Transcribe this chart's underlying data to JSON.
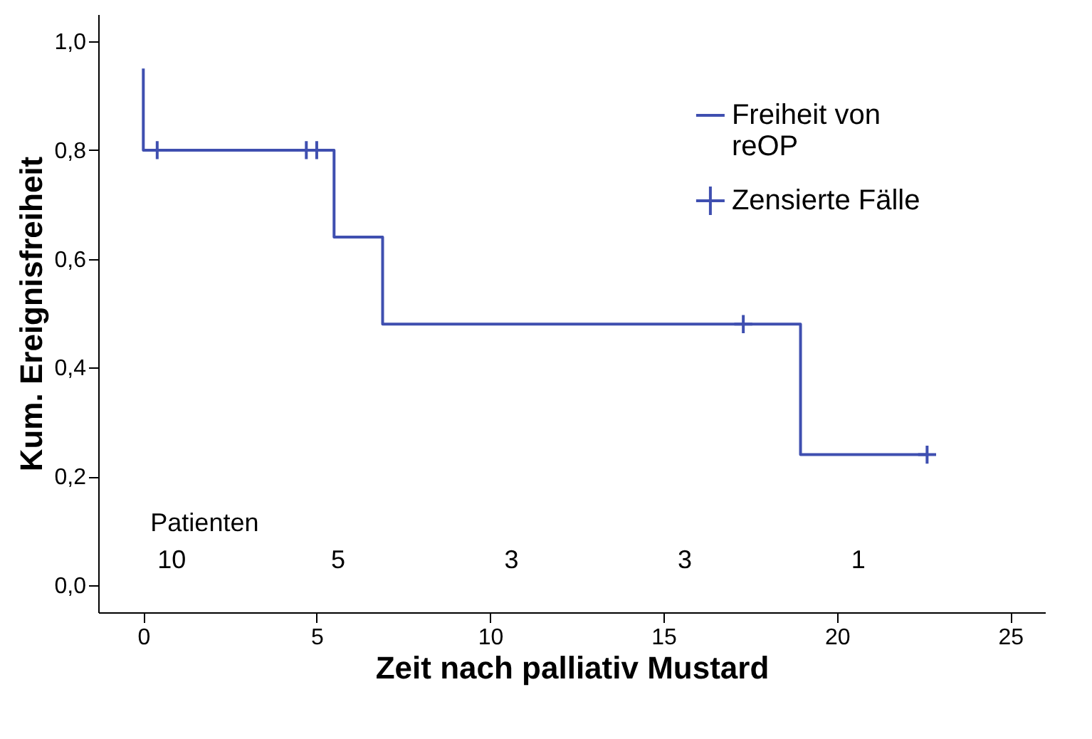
{
  "chart_data": {
    "type": "step",
    "xlabel": "Zeit nach palliativ Mustard",
    "ylabel": "Kum. Ereignisfreiheit",
    "xlim": [
      -1.3,
      26
    ],
    "ylim": [
      -0.05,
      1.05
    ],
    "xticks": [
      0,
      5,
      10,
      15,
      20,
      25
    ],
    "yticks": [
      {
        "value": 0,
        "label": "0,0"
      },
      {
        "value": 0.2,
        "label": "0,2"
      },
      {
        "value": 0.4,
        "label": "0,4"
      },
      {
        "value": 0.6,
        "label": "0,6"
      },
      {
        "value": 0.8,
        "label": "0,8"
      },
      {
        "value": 1,
        "label": "1,0"
      }
    ],
    "grid": false,
    "legend": "top right",
    "line_style": "solid",
    "series": [
      {
        "name": "Freiheit von reOP",
        "color": "#3f4fb0",
        "type": "step",
        "x": [
          0,
          0,
          5.5,
          6.9,
          18.95,
          22.6
        ],
        "values": [
          0.95,
          0.8,
          0.64,
          0.48,
          0.24,
          0.24
        ]
      },
      {
        "name": "Zensierte Fälle",
        "color": "#3f4fb0",
        "type": "scatter",
        "marker": "cross",
        "x": [
          0.4,
          4.7,
          5.0,
          17.3,
          22.6
        ],
        "values": [
          0.8,
          0.8,
          0.8,
          0.48,
          0.24
        ]
      }
    ],
    "annotations": [
      "Patienten",
      "10",
      "5",
      "3",
      "3",
      "1"
    ]
  }
}
